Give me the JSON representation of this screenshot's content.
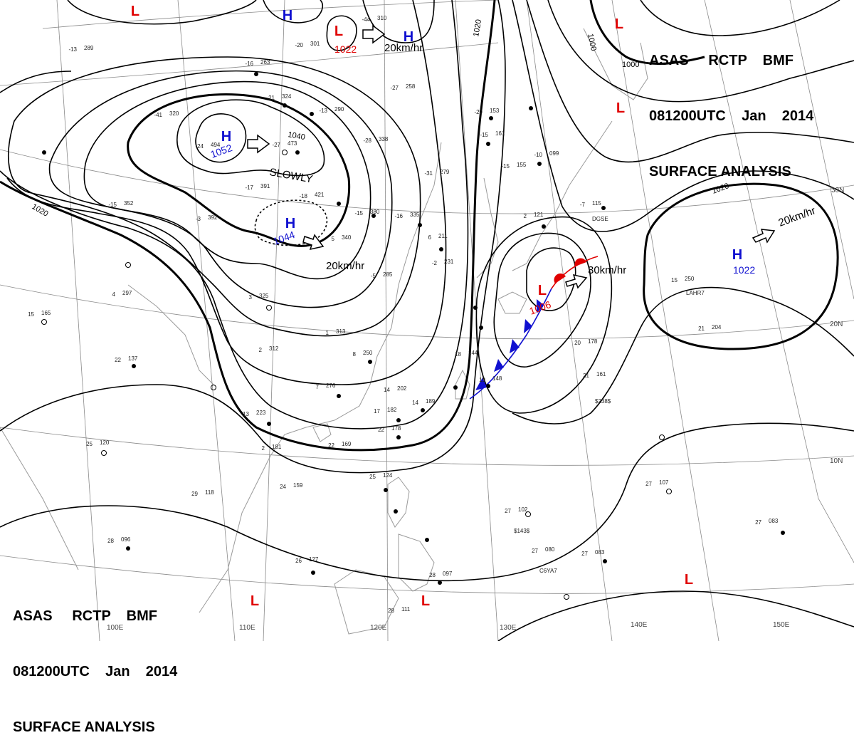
{
  "header": {
    "line1": "ASAS     RCTP    BMF",
    "line2": "081200UTC    Jan    2014",
    "line3": "SURFACE ANALYSIS"
  },
  "footer": {
    "line1": "ASAS     RCTP    BMF",
    "line2": "081200UTC    Jan    2014",
    "line3": "SURFACE ANALYSIS"
  },
  "pressure_centers": [
    {
      "type": "H",
      "value": "1052",
      "color": "#1010d0"
    },
    {
      "type": "H",
      "value": "1044",
      "color": "#1010d0"
    },
    {
      "type": "H",
      "value": "1022",
      "color": "#1010d0"
    },
    {
      "type": "H",
      "value": "",
      "color": "#1010d0"
    },
    {
      "type": "H",
      "value": "",
      "color": "#1010d0"
    },
    {
      "type": "L",
      "value": "1022",
      "color": "#e00000"
    },
    {
      "type": "L",
      "value": "1006",
      "color": "#e00000"
    },
    {
      "type": "L",
      "value": "",
      "color": "#e00000"
    },
    {
      "type": "L",
      "value": "",
      "color": "#e00000"
    },
    {
      "type": "L",
      "value": "",
      "color": "#e00000"
    },
    {
      "type": "L",
      "value": "",
      "color": "#e00000"
    },
    {
      "type": "L",
      "value": "",
      "color": "#e00000"
    },
    {
      "type": "L",
      "value": "",
      "color": "#e00000"
    }
  ],
  "movements": [
    "SLOWLY",
    "20km/hr",
    "20km/hr",
    "30km/hr",
    "20km/hr"
  ],
  "isobar_labels": [
    "1040",
    "1020",
    "1020",
    "1020",
    "1000",
    "1000"
  ],
  "longitude_labels": [
    "100E",
    "110E",
    "120E",
    "130E",
    "140E",
    "150E"
  ],
  "latitude_labels": [
    "30N",
    "20N",
    "10N"
  ],
  "stations": [
    {
      "t": "-13",
      "p": "289"
    },
    {
      "t": "-20",
      "p": "301"
    },
    {
      "t": "-16",
      "p": "263"
    },
    {
      "t": "-21",
      "p": "324"
    },
    {
      "t": "-13",
      "p": "290"
    },
    {
      "t": "-27",
      "p": "473"
    },
    {
      "t": "-24",
      "p": "494"
    },
    {
      "t": "-17",
      "p": "391"
    },
    {
      "t": "-18",
      "p": "421"
    },
    {
      "t": "-15",
      "p": "380"
    },
    {
      "t": "-16",
      "p": "335"
    },
    {
      "t": "-31",
      "p": "279"
    },
    {
      "t": "-28",
      "p": "338"
    },
    {
      "t": "-27",
      "p": "258"
    },
    {
      "t": "-29",
      "p": "153"
    },
    {
      "t": "-15",
      "p": "161"
    },
    {
      "t": "-15",
      "p": "155"
    },
    {
      "t": "-10",
      "p": "099"
    },
    {
      "t": "-7",
      "p": "115"
    },
    {
      "t": "2",
      "p": "121"
    },
    {
      "t": "15",
      "p": "250"
    },
    {
      "t": "21",
      "p": "204"
    },
    {
      "t": "20",
      "p": "178"
    },
    {
      "t": "21",
      "p": "161"
    },
    {
      "t": "18",
      "p": "144"
    },
    {
      "t": "19",
      "p": "148"
    },
    {
      "t": "14",
      "p": "189"
    },
    {
      "t": "-44",
      "p": "310"
    },
    {
      "t": "-41",
      "p": "320"
    },
    {
      "t": "-3",
      "p": "392"
    },
    {
      "t": "-15",
      "p": "352"
    },
    {
      "t": "3",
      "p": "325"
    },
    {
      "t": "1",
      "p": "313"
    },
    {
      "t": "4",
      "p": "297"
    },
    {
      "t": "15",
      "p": "165"
    },
    {
      "t": "22",
      "p": "137"
    },
    {
      "t": "13",
      "p": "223"
    },
    {
      "t": "22",
      "p": "169"
    },
    {
      "t": "25",
      "p": "120"
    },
    {
      "t": "29",
      "p": "118"
    },
    {
      "t": "24",
      "p": "159"
    },
    {
      "t": "28",
      "p": "096"
    },
    {
      "t": "26",
      "p": "127"
    },
    {
      "t": "25",
      "p": "124"
    },
    {
      "t": "28",
      "p": "111"
    },
    {
      "t": "27",
      "p": "102"
    },
    {
      "t": "27",
      "p": "080"
    },
    {
      "t": "27",
      "p": "083"
    },
    {
      "t": "27",
      "p": "107"
    },
    {
      "t": "27",
      "p": "083"
    },
    {
      "t": "28",
      "p": "097"
    },
    {
      "t": "8",
      "p": "250"
    },
    {
      "t": "7",
      "p": "276"
    },
    {
      "t": "5",
      "p": "340"
    },
    {
      "t": "2",
      "p": "181"
    },
    {
      "t": "14",
      "p": "202"
    },
    {
      "t": "17",
      "p": "182"
    },
    {
      "t": "22",
      "p": "178"
    },
    {
      "t": "6",
      "p": "211"
    },
    {
      "t": "2",
      "p": "312"
    },
    {
      "t": "-5",
      "p": "285"
    },
    {
      "t": "-2",
      "p": "231"
    }
  ],
  "ship_ids": [
    "DGSE",
    "LAHR7",
    "$238$",
    "$143$",
    "C6YA7"
  ],
  "colors": {
    "high": "#1010d0",
    "low": "#e00000",
    "cold_front": "#1010d0",
    "warm_front": "#e00000",
    "isobar": "#000000",
    "grid": "#888888",
    "coast": "#9a9a9a"
  }
}
